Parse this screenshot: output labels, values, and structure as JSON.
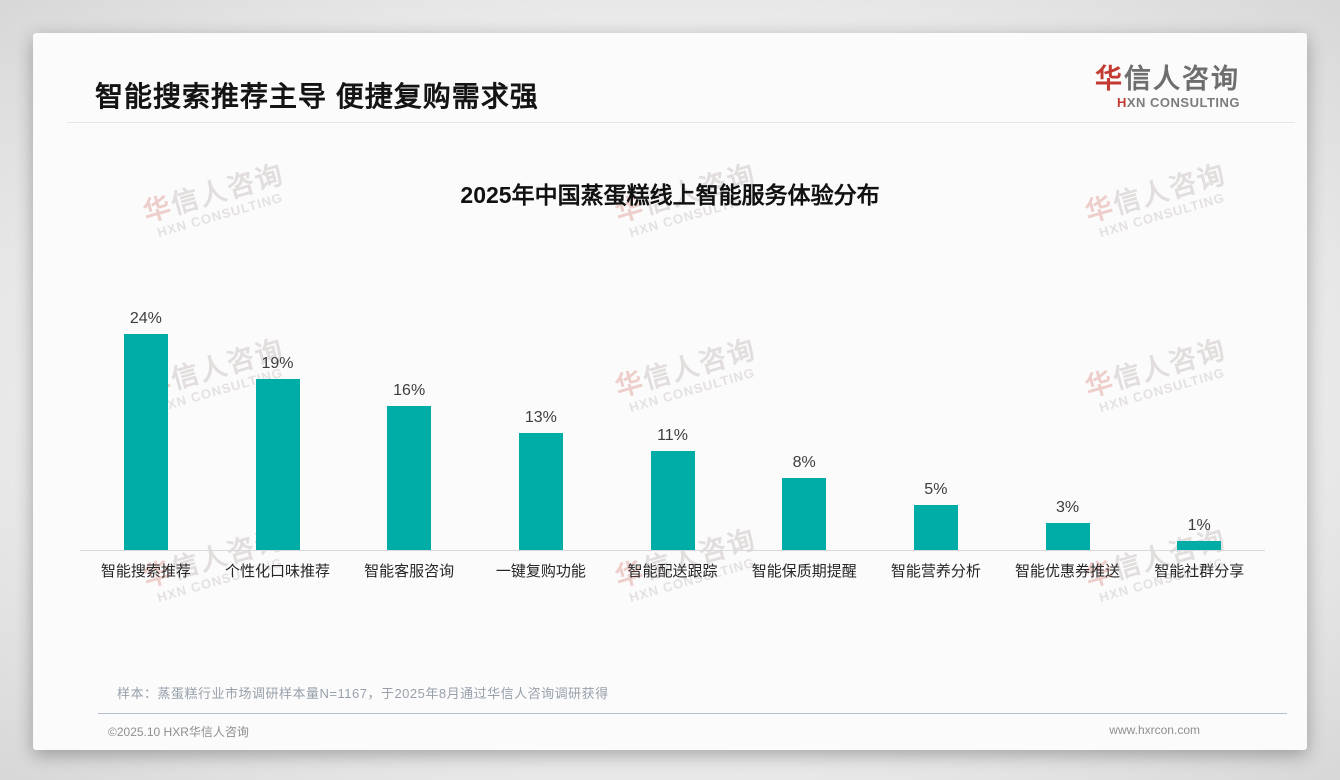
{
  "page": {
    "title": "智能搜索推荐主导 便捷复购需求强",
    "logo": {
      "cn_first": "华",
      "cn_rest": "信人咨询",
      "en_first": "H",
      "en_rest": "XN CONSULTING"
    },
    "note_label": "样本：",
    "note_text": "蒸蛋糕行业市场调研样本量N=1167，于2025年8月通过华信人咨询调研获得",
    "footer": {
      "copyright": "©2025.10 HXR华信人咨询",
      "website": "www.hxrcon.com"
    },
    "watermark": {
      "cn_first": "华",
      "cn_rest": "信人咨询",
      "en": "HXN CONSULTING"
    }
  },
  "chart_data": {
    "type": "bar",
    "title": "2025年中国蒸蛋糕线上智能服务体验分布",
    "categories": [
      "智能搜索推荐",
      "个性化口味推荐",
      "智能客服咨询",
      "一键复购功能",
      "智能配送跟踪",
      "智能保质期提醒",
      "智能营养分析",
      "智能优惠券推送",
      "智能社群分享"
    ],
    "values": [
      24,
      19,
      16,
      13,
      11,
      8,
      5,
      3,
      1
    ],
    "unit": "%",
    "value_labels": [
      "24%",
      "19%",
      "16%",
      "13%",
      "11%",
      "8%",
      "5%",
      "3%",
      "1%"
    ],
    "bar_color": "#00ada6",
    "xlabel": "",
    "ylabel": "",
    "ylim": [
      0,
      26
    ],
    "grid": false,
    "legend": null,
    "axis_line_color": "#d9d9d9"
  }
}
